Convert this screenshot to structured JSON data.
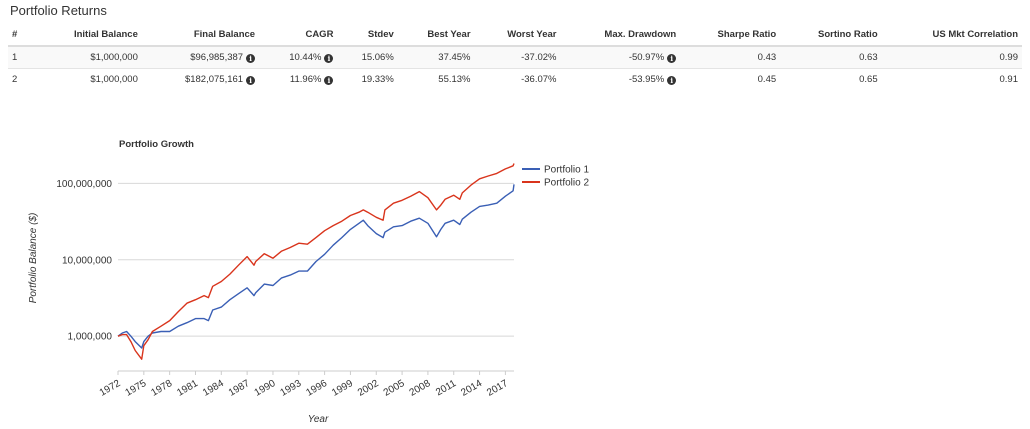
{
  "section_title": "Portfolio Returns",
  "table": {
    "headers": [
      "#",
      "Initial Balance",
      "Final Balance",
      "CAGR",
      "Stdev",
      "Best Year",
      "Worst Year",
      "Max. Drawdown",
      "Sharpe Ratio",
      "Sortino Ratio",
      "US Mkt Correlation"
    ],
    "info_icon": "info-circle-icon",
    "info_glyph": "i",
    "rows": [
      [
        "1",
        "$1,000,000",
        "$96,985,387",
        "10.44%",
        "15.06%",
        "37.45%",
        "-37.02%",
        "-50.97%",
        "0.43",
        "0.63",
        "0.99"
      ],
      [
        "2",
        "$1,000,000",
        "$182,075,161",
        "11.96%",
        "19.33%",
        "55.13%",
        "-36.07%",
        "-53.95%",
        "0.45",
        "0.65",
        "0.91"
      ]
    ]
  },
  "chart_data": {
    "type": "line",
    "title": "Portfolio Growth",
    "xlabel": "Year",
    "ylabel": "Portfolio Balance ($)",
    "y_scale": "log",
    "ylim": [
      350000,
      250000000
    ],
    "xlim": [
      1972,
      2018
    ],
    "x_ticks": [
      "1972",
      "1975",
      "1978",
      "1981",
      "1984",
      "1987",
      "1990",
      "1993",
      "1996",
      "1999",
      "2002",
      "2005",
      "2008",
      "2011",
      "2014",
      "2017"
    ],
    "y_ticks": [
      {
        "value": 1000000,
        "label": "1,000,000"
      },
      {
        "value": 10000000,
        "label": "10,000,000"
      },
      {
        "value": 100000000,
        "label": "100,000,000"
      }
    ],
    "grid": true,
    "legend_position": "right",
    "series": [
      {
        "name": "Portfolio 1",
        "color": "#3a5fb5",
        "points": [
          [
            1972,
            1000000
          ],
          [
            1972.5,
            1100000
          ],
          [
            1973,
            1150000
          ],
          [
            1973.5,
            1000000
          ],
          [
            1974,
            850000
          ],
          [
            1974.75,
            700000
          ],
          [
            1975,
            850000
          ],
          [
            1975.5,
            1000000
          ],
          [
            1976,
            1100000
          ],
          [
            1977,
            1150000
          ],
          [
            1978,
            1150000
          ],
          [
            1979,
            1350000
          ],
          [
            1980,
            1500000
          ],
          [
            1981,
            1700000
          ],
          [
            1982,
            1700000
          ],
          [
            1982.5,
            1600000
          ],
          [
            1983,
            2200000
          ],
          [
            1984,
            2400000
          ],
          [
            1985,
            3000000
          ],
          [
            1986,
            3600000
          ],
          [
            1987,
            4300000
          ],
          [
            1987.8,
            3400000
          ],
          [
            1988,
            3700000
          ],
          [
            1989,
            4800000
          ],
          [
            1990,
            4600000
          ],
          [
            1991,
            5800000
          ],
          [
            1992,
            6300000
          ],
          [
            1993,
            7100000
          ],
          [
            1994,
            7100000
          ],
          [
            1995,
            9500000
          ],
          [
            1996,
            11800000
          ],
          [
            1997,
            15500000
          ],
          [
            1998,
            19500000
          ],
          [
            1999,
            25000000
          ],
          [
            2000,
            30000000
          ],
          [
            2000.5,
            33000000
          ],
          [
            2001,
            28000000
          ],
          [
            2002,
            22000000
          ],
          [
            2002.8,
            19500000
          ],
          [
            2003,
            23000000
          ],
          [
            2004,
            27000000
          ],
          [
            2005,
            28000000
          ],
          [
            2006,
            32000000
          ],
          [
            2007,
            35000000
          ],
          [
            2008,
            30000000
          ],
          [
            2009,
            20000000
          ],
          [
            2009.5,
            25000000
          ],
          [
            2010,
            30000000
          ],
          [
            2011,
            33000000
          ],
          [
            2011.7,
            29000000
          ],
          [
            2012,
            34000000
          ],
          [
            2013,
            42000000
          ],
          [
            2014,
            50000000
          ],
          [
            2015,
            52000000
          ],
          [
            2016,
            55000000
          ],
          [
            2017,
            68000000
          ],
          [
            2017.9,
            80000000
          ],
          [
            2018,
            96985387
          ]
        ]
      },
      {
        "name": "Portfolio 2",
        "color": "#d9341c",
        "points": [
          [
            1972,
            1000000
          ],
          [
            1972.5,
            1050000
          ],
          [
            1973,
            1050000
          ],
          [
            1973.5,
            850000
          ],
          [
            1974,
            650000
          ],
          [
            1974.75,
            500000
          ],
          [
            1975,
            750000
          ],
          [
            1975.5,
            900000
          ],
          [
            1976,
            1150000
          ],
          [
            1977,
            1350000
          ],
          [
            1978,
            1600000
          ],
          [
            1979,
            2100000
          ],
          [
            1980,
            2700000
          ],
          [
            1981,
            3000000
          ],
          [
            1982,
            3400000
          ],
          [
            1982.5,
            3200000
          ],
          [
            1983,
            4500000
          ],
          [
            1984,
            5200000
          ],
          [
            1985,
            6500000
          ],
          [
            1986,
            8500000
          ],
          [
            1987,
            11000000
          ],
          [
            1987.8,
            8500000
          ],
          [
            1988,
            9500000
          ],
          [
            1989,
            12000000
          ],
          [
            1990,
            10500000
          ],
          [
            1991,
            13000000
          ],
          [
            1992,
            14500000
          ],
          [
            1993,
            16500000
          ],
          [
            1994,
            16000000
          ],
          [
            1995,
            19500000
          ],
          [
            1996,
            24000000
          ],
          [
            1997,
            28000000
          ],
          [
            1998,
            32000000
          ],
          [
            1999,
            38000000
          ],
          [
            2000,
            42000000
          ],
          [
            2000.5,
            45000000
          ],
          [
            2001,
            42000000
          ],
          [
            2002,
            36000000
          ],
          [
            2002.8,
            33000000
          ],
          [
            2003,
            45000000
          ],
          [
            2004,
            55000000
          ],
          [
            2005,
            60000000
          ],
          [
            2006,
            68000000
          ],
          [
            2007,
            78000000
          ],
          [
            2008,
            65000000
          ],
          [
            2009,
            45000000
          ],
          [
            2009.5,
            52000000
          ],
          [
            2010,
            62000000
          ],
          [
            2011,
            70000000
          ],
          [
            2011.7,
            62000000
          ],
          [
            2012,
            75000000
          ],
          [
            2013,
            95000000
          ],
          [
            2014,
            115000000
          ],
          [
            2015,
            125000000
          ],
          [
            2016,
            135000000
          ],
          [
            2017,
            155000000
          ],
          [
            2017.9,
            170000000
          ],
          [
            2018,
            182075161
          ]
        ]
      }
    ]
  }
}
